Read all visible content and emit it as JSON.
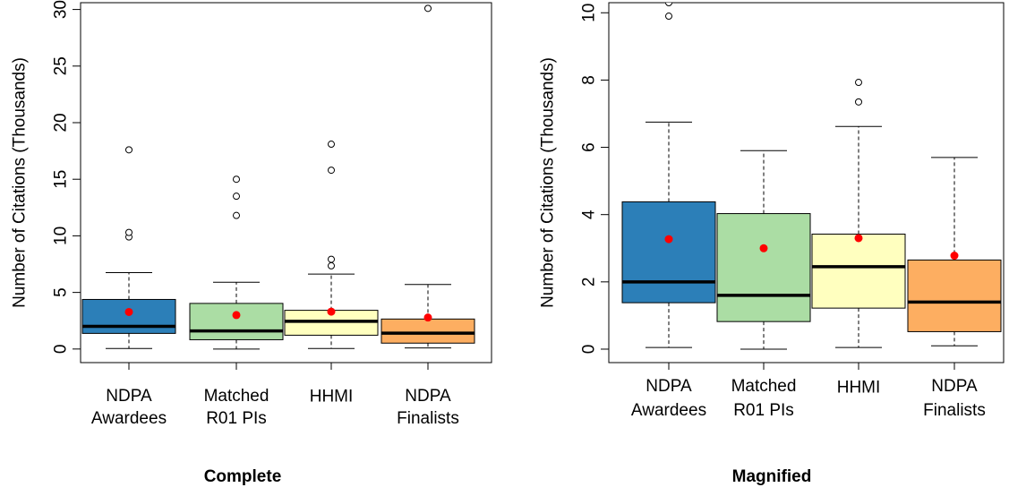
{
  "colors": {
    "box_fill": [
      "#2c7fb8",
      "#abdda4",
      "#ffffbf",
      "#fdae61"
    ],
    "mean_marker": "#ff0000",
    "median_line": "#000000"
  },
  "chart_data": [
    {
      "type": "box",
      "title": "Complete",
      "xlabel": "",
      "ylabel": "Number of Citations (Thousands)",
      "ylim": [
        0,
        30
      ],
      "yticks": [
        0,
        5,
        10,
        15,
        20,
        25,
        30
      ],
      "categories": [
        {
          "lines": [
            "NDPA",
            "Awardees"
          ]
        },
        {
          "lines": [
            "Matched",
            "R01 PIs"
          ]
        },
        {
          "lines": [
            "HHMI"
          ]
        },
        {
          "lines": [
            "NDPA",
            "Finalists"
          ]
        }
      ],
      "boxes": [
        {
          "whisker_low": 0.05,
          "q1": 1.38,
          "median": 2.0,
          "q3": 4.38,
          "whisker_high": 6.75,
          "mean": 3.27,
          "outliers": [
            9.9,
            10.3,
            17.6
          ]
        },
        {
          "whisker_low": 0.0,
          "q1": 0.82,
          "median": 1.6,
          "q3": 4.03,
          "whisker_high": 5.9,
          "mean": 3.0,
          "outliers": [
            11.8,
            13.5,
            15.0
          ]
        },
        {
          "whisker_low": 0.05,
          "q1": 1.22,
          "median": 2.45,
          "q3": 3.42,
          "whisker_high": 6.62,
          "mean": 3.3,
          "outliers": [
            7.35,
            7.93,
            15.8,
            18.1
          ]
        },
        {
          "whisker_low": 0.1,
          "q1": 0.52,
          "median": 1.4,
          "q3": 2.65,
          "whisker_high": 5.7,
          "mean": 2.78,
          "outliers": [
            30.1
          ]
        }
      ]
    },
    {
      "type": "box",
      "title": "Magnified",
      "xlabel": "",
      "ylabel": "Number of Citations (Thousands)",
      "ylim": [
        0,
        10
      ],
      "yticks": [
        0,
        2,
        4,
        6,
        8,
        10
      ],
      "categories": [
        {
          "lines": [
            "NDPA",
            "Awardees"
          ]
        },
        {
          "lines": [
            "Matched",
            "R01 PIs"
          ]
        },
        {
          "lines": [
            "HHMI"
          ]
        },
        {
          "lines": [
            "NDPA",
            "Finalists"
          ]
        }
      ],
      "boxes": [
        {
          "whisker_low": 0.05,
          "q1": 1.38,
          "median": 2.0,
          "q3": 4.38,
          "whisker_high": 6.75,
          "mean": 3.27,
          "outliers": [
            9.9,
            10.3
          ]
        },
        {
          "whisker_low": 0.0,
          "q1": 0.82,
          "median": 1.6,
          "q3": 4.03,
          "whisker_high": 5.9,
          "mean": 3.0,
          "outliers": []
        },
        {
          "whisker_low": 0.05,
          "q1": 1.22,
          "median": 2.45,
          "q3": 3.42,
          "whisker_high": 6.62,
          "mean": 3.3,
          "outliers": [
            7.35,
            7.93
          ]
        },
        {
          "whisker_low": 0.1,
          "q1": 0.52,
          "median": 1.4,
          "q3": 2.65,
          "whisker_high": 5.7,
          "mean": 2.78,
          "outliers": []
        }
      ]
    }
  ]
}
